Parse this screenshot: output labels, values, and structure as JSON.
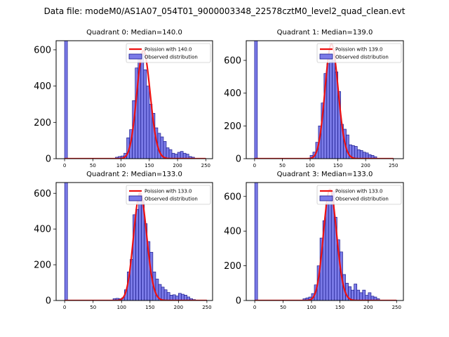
{
  "figure": {
    "title": "Data file: modeM0/AS1A07_054T01_9000003348_22578cztM0_level2_quad_clean.evt"
  },
  "colors": {
    "bar_fill": "#7b7be8",
    "bar_edge": "#1a1a8c",
    "poisson_line": "#ee1111",
    "axis": "#000000"
  },
  "chart_data": [
    {
      "type": "bar",
      "title": "Quadrant 0: Median=140.0",
      "legend": [
        "Poission with 140.0",
        "Observed distribution"
      ],
      "legend_position": "top-right",
      "xlim": [
        -15,
        262
      ],
      "ylim": [
        0,
        650
      ],
      "xticks": [
        0,
        50,
        100,
        150,
        200,
        250
      ],
      "yticks": [
        0,
        200,
        400,
        600
      ],
      "bin_width": 5,
      "bins": [
        [
          0,
          650
        ],
        [
          90,
          8
        ],
        [
          95,
          12
        ],
        [
          100,
          15
        ],
        [
          105,
          30
        ],
        [
          110,
          115
        ],
        [
          115,
          160
        ],
        [
          120,
          320
        ],
        [
          125,
          500
        ],
        [
          130,
          560
        ],
        [
          135,
          580
        ],
        [
          140,
          490
        ],
        [
          145,
          400
        ],
        [
          150,
          300
        ],
        [
          155,
          250
        ],
        [
          160,
          170
        ],
        [
          165,
          140
        ],
        [
          170,
          120
        ],
        [
          175,
          95
        ],
        [
          180,
          60
        ],
        [
          185,
          50
        ],
        [
          190,
          30
        ],
        [
          195,
          25
        ],
        [
          200,
          35
        ],
        [
          205,
          40
        ],
        [
          210,
          30
        ],
        [
          215,
          25
        ],
        [
          220,
          12
        ],
        [
          225,
          8
        ]
      ],
      "poisson_mean": 140,
      "poisson_peak": 595
    },
    {
      "type": "bar",
      "title": "Quadrant 1: Median=139.0",
      "legend": [
        "Poission with 139.0",
        "Observed distribution"
      ],
      "legend_position": "top-right",
      "xlim": [
        -15,
        268
      ],
      "ylim": [
        0,
        720
      ],
      "xticks": [
        0,
        50,
        100,
        150,
        200,
        250
      ],
      "yticks": [
        0,
        200,
        400,
        600
      ],
      "bin_width": 5,
      "bins": [
        [
          0,
          720
        ],
        [
          100,
          20
        ],
        [
          105,
          40
        ],
        [
          110,
          100
        ],
        [
          115,
          200
        ],
        [
          120,
          340
        ],
        [
          125,
          520
        ],
        [
          130,
          580
        ],
        [
          135,
          630
        ],
        [
          140,
          600
        ],
        [
          145,
          530
        ],
        [
          150,
          410
        ],
        [
          155,
          210
        ],
        [
          160,
          180
        ],
        [
          165,
          145
        ],
        [
          170,
          85
        ],
        [
          175,
          80
        ],
        [
          180,
          75
        ],
        [
          185,
          55
        ],
        [
          190,
          50
        ],
        [
          195,
          40
        ],
        [
          200,
          35
        ],
        [
          205,
          25
        ],
        [
          210,
          20
        ],
        [
          215,
          12
        ]
      ],
      "poisson_mean": 139,
      "poisson_peak": 700
    },
    {
      "type": "bar",
      "title": "Quadrant 2: Median=133.0",
      "legend": [
        "Poission with 133.0",
        "Observed distribution"
      ],
      "legend_position": "top-right",
      "xlim": [
        -15,
        260
      ],
      "ylim": [
        0,
        660
      ],
      "xticks": [
        0,
        50,
        100,
        150,
        200,
        250
      ],
      "yticks": [
        0,
        200,
        400,
        600
      ],
      "bin_width": 5,
      "bins": [
        [
          0,
          660
        ],
        [
          85,
          10
        ],
        [
          90,
          12
        ],
        [
          95,
          10
        ],
        [
          100,
          15
        ],
        [
          105,
          60
        ],
        [
          110,
          160
        ],
        [
          115,
          230
        ],
        [
          120,
          480
        ],
        [
          125,
          510
        ],
        [
          130,
          600
        ],
        [
          135,
          560
        ],
        [
          140,
          430
        ],
        [
          145,
          330
        ],
        [
          150,
          270
        ],
        [
          155,
          160
        ],
        [
          160,
          120
        ],
        [
          165,
          90
        ],
        [
          170,
          75
        ],
        [
          175,
          60
        ],
        [
          180,
          45
        ],
        [
          185,
          30
        ],
        [
          190,
          32
        ],
        [
          195,
          25
        ],
        [
          200,
          40
        ],
        [
          205,
          35
        ],
        [
          210,
          30
        ],
        [
          215,
          20
        ],
        [
          220,
          10
        ],
        [
          225,
          5
        ]
      ],
      "poisson_mean": 133,
      "poisson_peak": 600
    },
    {
      "type": "bar",
      "title": "Quadrant 3: Median=133.0",
      "legend": [
        "Poission with 133.0",
        "Observed distribution"
      ],
      "legend_position": "top-right",
      "xlim": [
        -15,
        262
      ],
      "ylim": [
        0,
        680
      ],
      "xticks": [
        0,
        50,
        100,
        150,
        200,
        250
      ],
      "yticks": [
        0,
        200,
        400,
        600
      ],
      "bin_width": 5,
      "bins": [
        [
          0,
          680
        ],
        [
          85,
          10
        ],
        [
          90,
          15
        ],
        [
          95,
          20
        ],
        [
          100,
          40
        ],
        [
          105,
          90
        ],
        [
          110,
          200
        ],
        [
          115,
          360
        ],
        [
          120,
          460
        ],
        [
          125,
          560
        ],
        [
          130,
          600
        ],
        [
          135,
          630
        ],
        [
          140,
          480
        ],
        [
          145,
          350
        ],
        [
          150,
          280
        ],
        [
          155,
          150
        ],
        [
          160,
          100
        ],
        [
          165,
          80
        ],
        [
          170,
          60
        ],
        [
          175,
          95
        ],
        [
          180,
          60
        ],
        [
          185,
          45
        ],
        [
          190,
          60
        ],
        [
          195,
          30
        ],
        [
          200,
          45
        ],
        [
          205,
          25
        ],
        [
          210,
          20
        ],
        [
          215,
          10
        ]
      ],
      "poisson_mean": 133,
      "poisson_peak": 640
    }
  ]
}
